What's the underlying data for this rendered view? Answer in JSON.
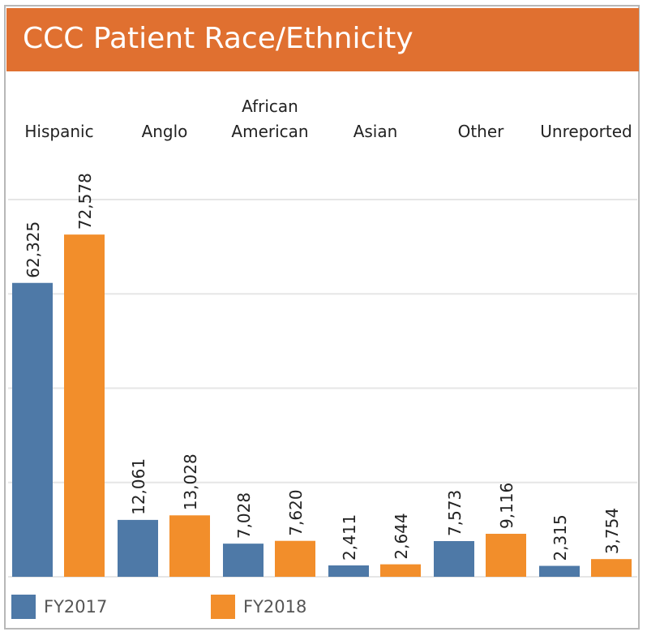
{
  "title": "CCC Patient Race/Ethnicity",
  "colors": {
    "title_bar": "#e07030",
    "fy2017": "#4e79a7",
    "fy2018": "#f28e2b",
    "grid": "#e6e6e6"
  },
  "chart_data": {
    "type": "bar",
    "title": "CCC Patient Race/Ethnicity",
    "categories": [
      "Hispanic",
      "Anglo",
      "African American",
      "Asian",
      "Other",
      "Unreported"
    ],
    "category_labels": [
      [
        "Hispanic"
      ],
      [
        "Anglo"
      ],
      [
        "African",
        "American"
      ],
      [
        "Asian"
      ],
      [
        "Other"
      ],
      [
        "Unreported"
      ]
    ],
    "series": [
      {
        "name": "FY2017",
        "values": [
          62325,
          12061,
          7028,
          2411,
          7573,
          2315
        ],
        "labels": [
          "62,325",
          "12,061",
          "7,028",
          "2,411",
          "7,573",
          "2,315"
        ]
      },
      {
        "name": "FY2018",
        "values": [
          72578,
          13028,
          7620,
          2644,
          9116,
          3754
        ],
        "labels": [
          "72,578",
          "13,028",
          "7,620",
          "2,644",
          "9,116",
          "3,754"
        ]
      }
    ],
    "xlabel": "",
    "ylabel": "",
    "ylim": [
      0,
      80000
    ],
    "gridlines": [
      0,
      20000,
      40000,
      60000,
      80000
    ],
    "legend": "bottom-left",
    "grid": true
  }
}
